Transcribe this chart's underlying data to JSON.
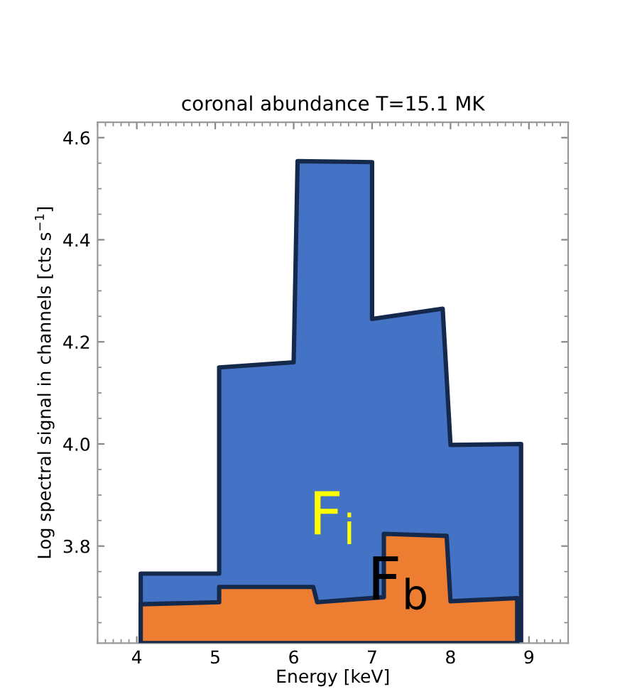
{
  "chart_data": {
    "type": "area",
    "title": "coronal abundance T=15.1 MK",
    "xlabel": "Energy [keV]",
    "ylabel": "Log spectral signal in channels [cts s$^{−1}$]",
    "xlim": [
      3.5,
      9.5
    ],
    "ylim": [
      3.61,
      4.63
    ],
    "xticks": [
      4,
      5,
      6,
      7,
      8,
      9
    ],
    "yticks": [
      {
        "value": 3.8,
        "label": "3.8"
      },
      {
        "value": 4.0,
        "label": "4.0"
      },
      {
        "value": 4.2,
        "label": "4.2"
      },
      {
        "value": 4.4,
        "label": "4.4"
      },
      {
        "value": 4.6,
        "label": "4.6"
      }
    ],
    "grid": false,
    "legend": false,
    "series": [
      {
        "color": "#4472c4",
        "x": [
          4.05,
          5.05,
          5.05,
          6.0,
          6.05,
          7.0,
          7.0,
          7.9,
          8.0,
          8.9
        ],
        "values": [
          3.746,
          3.746,
          4.15,
          4.16,
          4.554,
          4.552,
          4.245,
          4.265,
          3.998,
          4.0
        ]
      },
      {
        "color": "#ed7d31",
        "x": [
          4.05,
          5.05,
          5.05,
          6.25,
          6.3,
          7.15,
          7.15,
          7.95,
          8.0,
          8.85
        ],
        "values": [
          3.686,
          3.69,
          3.72,
          3.72,
          3.69,
          3.7,
          3.824,
          3.82,
          3.692,
          3.698
        ]
      }
    ],
    "annotations": [
      "F$_{i}$",
      "F$_{b}$"
    ]
  }
}
